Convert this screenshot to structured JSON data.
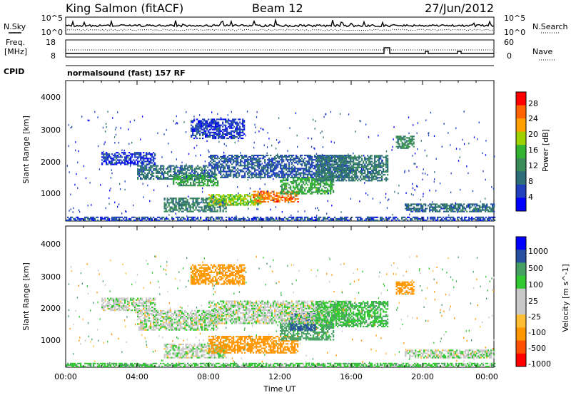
{
  "header": {
    "station": "King Salmon (fitACF)",
    "beam": "Beam 12",
    "date": "27/Jun/2012"
  },
  "noise_panel": {
    "left_label": "N.Sky",
    "right_label": "N.Search",
    "left_ticks": [
      "10^5",
      "10^0"
    ],
    "right_ticks": [
      "10^5",
      "10^0"
    ]
  },
  "freq_panel": {
    "left_label_line1": "Freq.",
    "left_label_line2": "[MHz]",
    "right_label": "Nave",
    "left_ticks": [
      "18",
      "8"
    ],
    "right_ticks": [
      "60",
      "0"
    ]
  },
  "cpid_panel": {
    "label": "CPID",
    "text": "normalsound (fast) 157 RF"
  },
  "x_axis": {
    "label": "Time UT",
    "ticks": [
      "00:00",
      "04:00",
      "08:00",
      "12:00",
      "16:00",
      "20:00",
      "00:00"
    ],
    "range_hours": [
      0,
      24
    ]
  },
  "colors": {
    "power_scale": [
      "#0000ff",
      "#2040c0",
      "#2e6e78",
      "#3c8c5a",
      "#32b432",
      "#a0d200",
      "#ffa000",
      "#ff6400",
      "#ff0000"
    ],
    "velocity_scale": [
      "#ff0000",
      "#ff5000",
      "#ff9600",
      "#ffbe32",
      "#c8c8c8",
      "#c8c8c8",
      "#32c832",
      "#46a064",
      "#2850a0",
      "#0000ff"
    ]
  },
  "chart_data": [
    {
      "type": "heatmap",
      "panel": "power",
      "ylabel": "Slant Range [km]",
      "ylim": [
        180,
        4500
      ],
      "yticks": [
        "1000",
        "2000",
        "3000",
        "4000"
      ],
      "xlim": [
        0,
        24
      ],
      "colorbar": {
        "label": "Power [dB]",
        "range": [
          0,
          32
        ],
        "ticks": [
          "4",
          "8",
          "12",
          "16",
          "20",
          "24",
          "28"
        ]
      },
      "regions": [
        {
          "t0": 0,
          "t1": 24,
          "r0": 180,
          "r1": 300,
          "value": 6
        },
        {
          "t0": 2,
          "t1": 5,
          "r0": 1900,
          "r1": 2300,
          "value": 5
        },
        {
          "t0": 4,
          "t1": 8,
          "r0": 1450,
          "r1": 1900,
          "value": 9
        },
        {
          "t0": 6,
          "t1": 8.5,
          "r0": 1250,
          "r1": 1600,
          "value": 14
        },
        {
          "t0": 5.5,
          "t1": 9,
          "r0": 450,
          "r1": 900,
          "value": 11
        },
        {
          "t0": 8,
          "t1": 11,
          "r0": 650,
          "r1": 1000,
          "value": 19
        },
        {
          "t0": 10.5,
          "t1": 13,
          "r0": 750,
          "r1": 1100,
          "value": 26
        },
        {
          "t0": 12,
          "t1": 15,
          "r0": 1000,
          "r1": 1500,
          "value": 15
        },
        {
          "t0": 8,
          "t1": 16,
          "r0": 1500,
          "r1": 2200,
          "value": 7
        },
        {
          "t0": 14,
          "t1": 18,
          "r0": 1400,
          "r1": 2200,
          "value": 10
        },
        {
          "t0": 18.5,
          "t1": 19.5,
          "r0": 2400,
          "r1": 2800,
          "value": 12
        },
        {
          "t0": 19,
          "t1": 24,
          "r0": 450,
          "r1": 700,
          "value": 9
        },
        {
          "t0": 7,
          "t1": 10,
          "r0": 2700,
          "r1": 3300,
          "value": 5
        }
      ]
    },
    {
      "type": "heatmap",
      "panel": "velocity",
      "ylabel": "Slant Range [km]",
      "ylim": [
        180,
        4500
      ],
      "yticks": [
        "1000",
        "2000",
        "3000",
        "4000"
      ],
      "xlim": [
        0,
        24
      ],
      "colorbar": {
        "label": "Velocity [m s^-1]",
        "ticks": [
          "1000",
          "500",
          "100",
          "25",
          "-25",
          "-100",
          "-500",
          "-1000"
        ]
      },
      "regions": [
        {
          "t0": 0,
          "t1": 24,
          "r0": 180,
          "r1": 300,
          "value": 60
        },
        {
          "t0": 2,
          "t1": 5,
          "r0": 1900,
          "r1": 2300,
          "value": 0
        },
        {
          "t0": 4,
          "t1": 8.5,
          "r0": 1300,
          "r1": 1900,
          "value": 0
        },
        {
          "t0": 5.5,
          "t1": 9,
          "r0": 450,
          "r1": 900,
          "value": 0
        },
        {
          "t0": 8,
          "t1": 13,
          "r0": 600,
          "r1": 1100,
          "value": -300
        },
        {
          "t0": 12,
          "t1": 15,
          "r0": 1000,
          "r1": 1500,
          "value": 150
        },
        {
          "t0": 12.5,
          "t1": 14,
          "r0": 1300,
          "r1": 1800,
          "value": 600
        },
        {
          "t0": 8,
          "t1": 16,
          "r0": 1500,
          "r1": 2200,
          "value": 0
        },
        {
          "t0": 14,
          "t1": 18,
          "r0": 1400,
          "r1": 2200,
          "value": 80
        },
        {
          "t0": 18.5,
          "t1": 19.5,
          "r0": 2400,
          "r1": 2800,
          "value": -200
        },
        {
          "t0": 19,
          "t1": 24,
          "r0": 450,
          "r1": 700,
          "value": 0
        },
        {
          "t0": 7,
          "t1": 10,
          "r0": 2700,
          "r1": 3300,
          "value": -150
        }
      ]
    }
  ]
}
